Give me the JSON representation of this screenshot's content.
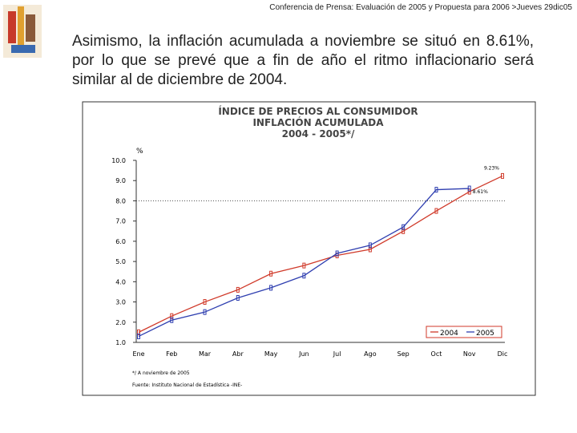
{
  "header": "Conferencia de Prensa: Evaluación de 2005 y Propuesta para 2006 >Jueves 29dic05",
  "paragraph": "Asimismo, la inflación acumulada a noviembre se situó en 8.61%, por lo que se prevé que a fin de año el ritmo inflacionario será similar al de diciembre de 2004.",
  "chart_data": {
    "type": "line",
    "title": [
      "ÍNDICE DE PRECIOS AL CONSUMIDOR",
      "INFLACIÓN ACUMULADA",
      "2004 - 2005*/"
    ],
    "y_label": "%",
    "categories": [
      "Ene",
      "Feb",
      "Mar",
      "Abr",
      "May",
      "Jun",
      "Jul",
      "Ago",
      "Sep",
      "Oct",
      "Nov",
      "Dic"
    ],
    "series": [
      {
        "name": "2004",
        "color": "#d03a2a",
        "values": [
          1.5,
          2.3,
          3.0,
          3.6,
          4.4,
          4.8,
          5.3,
          5.6,
          6.5,
          7.5,
          8.45,
          9.23
        ],
        "value_labels": [
          null,
          null,
          null,
          null,
          null,
          null,
          null,
          null,
          null,
          null,
          null,
          "9.23%"
        ]
      },
      {
        "name": "2005",
        "color": "#2f3fb0",
        "values": [
          1.3,
          2.1,
          2.5,
          3.2,
          3.7,
          4.3,
          5.4,
          5.8,
          6.7,
          8.55,
          8.61,
          null
        ],
        "value_labels": [
          null,
          null,
          null,
          null,
          null,
          null,
          null,
          null,
          null,
          null,
          "8.61%",
          null
        ]
      }
    ],
    "ylim": [
      1,
      10
    ],
    "yticks": [
      {
        "value": 1,
        "label": "1.0"
      },
      {
        "value": 2,
        "label": "2.0"
      },
      {
        "value": 3,
        "label": "3.0"
      },
      {
        "value": 4,
        "label": "4.0"
      },
      {
        "value": 5,
        "label": "5.0"
      },
      {
        "value": 6,
        "label": "6.0"
      },
      {
        "value": 7,
        "label": "7.0"
      },
      {
        "value": 8,
        "label": "8.0"
      },
      {
        "value": 9,
        "label": "9.0"
      },
      {
        "value": 10,
        "label": "10.0"
      }
    ],
    "reference_line": 8,
    "legend": "bottom-right",
    "notes": [
      "*/ A noviembre de 2005",
      "Fuente: Instituto Nacional de Estadística -INE-"
    ]
  }
}
